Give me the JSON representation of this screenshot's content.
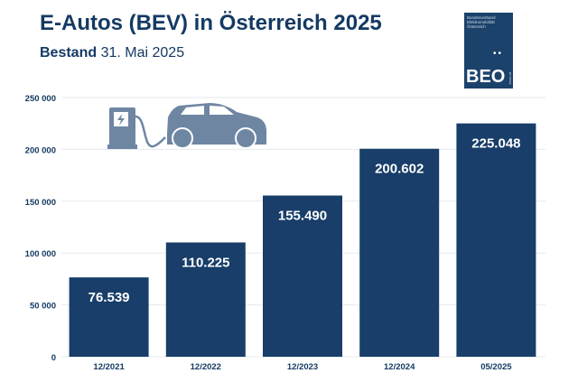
{
  "header": {
    "title": "E-Autos (BEV) in Österreich 2025",
    "subtitle_bold": "Bestand",
    "subtitle_date": "31. Mai 2025"
  },
  "logo": {
    "line1": "Bundesverband",
    "line2": "Elektromobilität",
    "line3": "Österreich",
    "mark": "BEO",
    "url": "beoe.at"
  },
  "colors": {
    "bar": "#183e69",
    "title": "#143a63",
    "icon": "#6f86a3",
    "grid": "#e6e9ee"
  },
  "icons": [
    "charging-station-icon",
    "car-icon"
  ],
  "chart_data": {
    "type": "bar",
    "categories": [
      "12/2021",
      "12/2022",
      "12/2023",
      "12/2024",
      "05/2025"
    ],
    "values": [
      76539,
      110225,
      155490,
      200602,
      225048
    ],
    "data_labels": [
      "76.539",
      "110.225",
      "155.490",
      "200.602",
      "225.048"
    ],
    "yticks": [
      "0",
      "50 000",
      "100 000",
      "150 000",
      "200 000",
      "250 000"
    ],
    "ylim": [
      0,
      250000
    ],
    "grid": true
  }
}
